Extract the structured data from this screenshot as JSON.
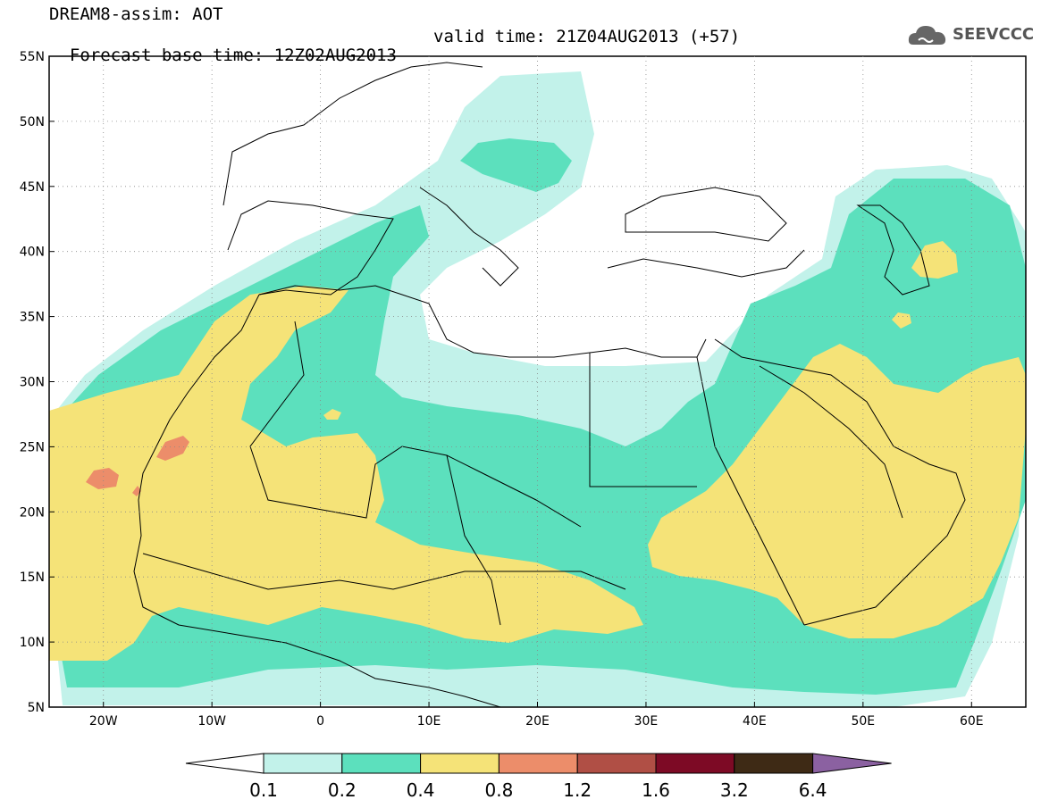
{
  "header": {
    "line1": "DREAM8-assim: AOT",
    "base_time": "Forecast base time: 12Z02AUG2013",
    "valid_time": "valid time: 21Z04AUG2013 (+57)"
  },
  "logo": {
    "text": "SEEVCCC",
    "icon": "cloud-icon"
  },
  "map": {
    "lon_range": [
      -25,
      65
    ],
    "lat_range": [
      5,
      55
    ],
    "lat_ticks": [
      "5N",
      "10N",
      "15N",
      "20N",
      "25N",
      "30N",
      "35N",
      "40N",
      "45N",
      "50N",
      "55N"
    ],
    "lon_ticks": [
      "20W",
      "10W",
      "0",
      "10E",
      "20E",
      "30E",
      "40E",
      "50E",
      "60E"
    ]
  },
  "legend": {
    "colors": [
      "#ffffff",
      "#c2f2ea",
      "#5ce0bd",
      "#f5e378",
      "#ec8d6a",
      "#b04f45",
      "#7d0a25",
      "#3e2a15",
      "#8b61a1"
    ],
    "labels": [
      "0.1",
      "0.2",
      "0.4",
      "0.8",
      "1.2",
      "1.6",
      "3.2",
      "6.4"
    ]
  },
  "colors": {
    "aot_0_1": "#c2f2ea",
    "aot_0_2": "#5ce0bd",
    "aot_0_4": "#f5e378",
    "aot_0_8": "#ec8d6a",
    "coastline": "#000000"
  }
}
